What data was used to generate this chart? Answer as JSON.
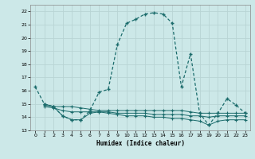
{
  "title": "",
  "xlabel": "Humidex (Indice chaleur)",
  "ylabel": "",
  "bg_color": "#cce8e8",
  "line_color": "#1a6b6b",
  "grid_color": "#b8d4d4",
  "xlim": [
    -0.5,
    23.5
  ],
  "ylim": [
    13,
    22.5
  ],
  "yticks": [
    13,
    14,
    15,
    16,
    17,
    18,
    19,
    20,
    21,
    22
  ],
  "xticks": [
    0,
    1,
    2,
    3,
    4,
    5,
    6,
    7,
    8,
    9,
    10,
    11,
    12,
    13,
    14,
    15,
    16,
    17,
    18,
    19,
    20,
    21,
    22,
    23
  ],
  "line1_x": [
    0,
    1,
    2,
    3,
    4,
    5,
    6,
    7,
    8,
    9,
    10,
    11,
    12,
    13,
    14,
    15,
    16,
    17,
    18,
    19,
    20,
    21,
    22,
    23
  ],
  "line1_y": [
    16.3,
    15.0,
    14.8,
    14.1,
    13.8,
    13.8,
    14.5,
    15.9,
    16.1,
    19.5,
    21.1,
    21.4,
    21.8,
    21.9,
    21.8,
    21.1,
    16.3,
    18.8,
    14.3,
    13.4,
    14.3,
    15.4,
    14.9,
    14.3
  ],
  "line2_x": [
    1,
    2,
    3,
    4,
    5,
    6,
    7,
    8,
    9,
    10,
    11,
    12,
    13,
    14,
    15,
    16,
    17,
    18,
    19,
    20,
    21,
    22,
    23
  ],
  "line2_y": [
    14.9,
    14.8,
    14.8,
    14.8,
    14.7,
    14.6,
    14.5,
    14.5,
    14.5,
    14.5,
    14.5,
    14.5,
    14.5,
    14.5,
    14.5,
    14.5,
    14.4,
    14.3,
    14.3,
    14.3,
    14.3,
    14.3,
    14.3
  ],
  "line3_x": [
    1,
    2,
    3,
    4,
    5,
    6,
    7,
    8,
    9,
    10,
    11,
    12,
    13,
    14,
    15,
    16,
    17,
    18,
    19,
    20,
    21,
    22,
    23
  ],
  "line3_y": [
    15.0,
    14.8,
    14.1,
    13.8,
    13.8,
    14.3,
    14.4,
    14.4,
    14.3,
    14.3,
    14.3,
    14.3,
    14.2,
    14.2,
    14.2,
    14.2,
    14.1,
    14.1,
    14.0,
    14.1,
    14.1,
    14.1,
    14.1
  ],
  "line4_x": [
    1,
    2,
    3,
    4,
    5,
    6,
    7,
    8,
    9,
    10,
    11,
    12,
    13,
    14,
    15,
    16,
    17,
    18,
    19,
    20,
    21,
    22,
    23
  ],
  "line4_y": [
    14.8,
    14.7,
    14.5,
    14.4,
    14.4,
    14.4,
    14.4,
    14.3,
    14.2,
    14.1,
    14.1,
    14.1,
    14.0,
    14.0,
    13.9,
    13.9,
    13.8,
    13.7,
    13.4,
    13.7,
    13.8,
    13.8,
    13.8
  ]
}
